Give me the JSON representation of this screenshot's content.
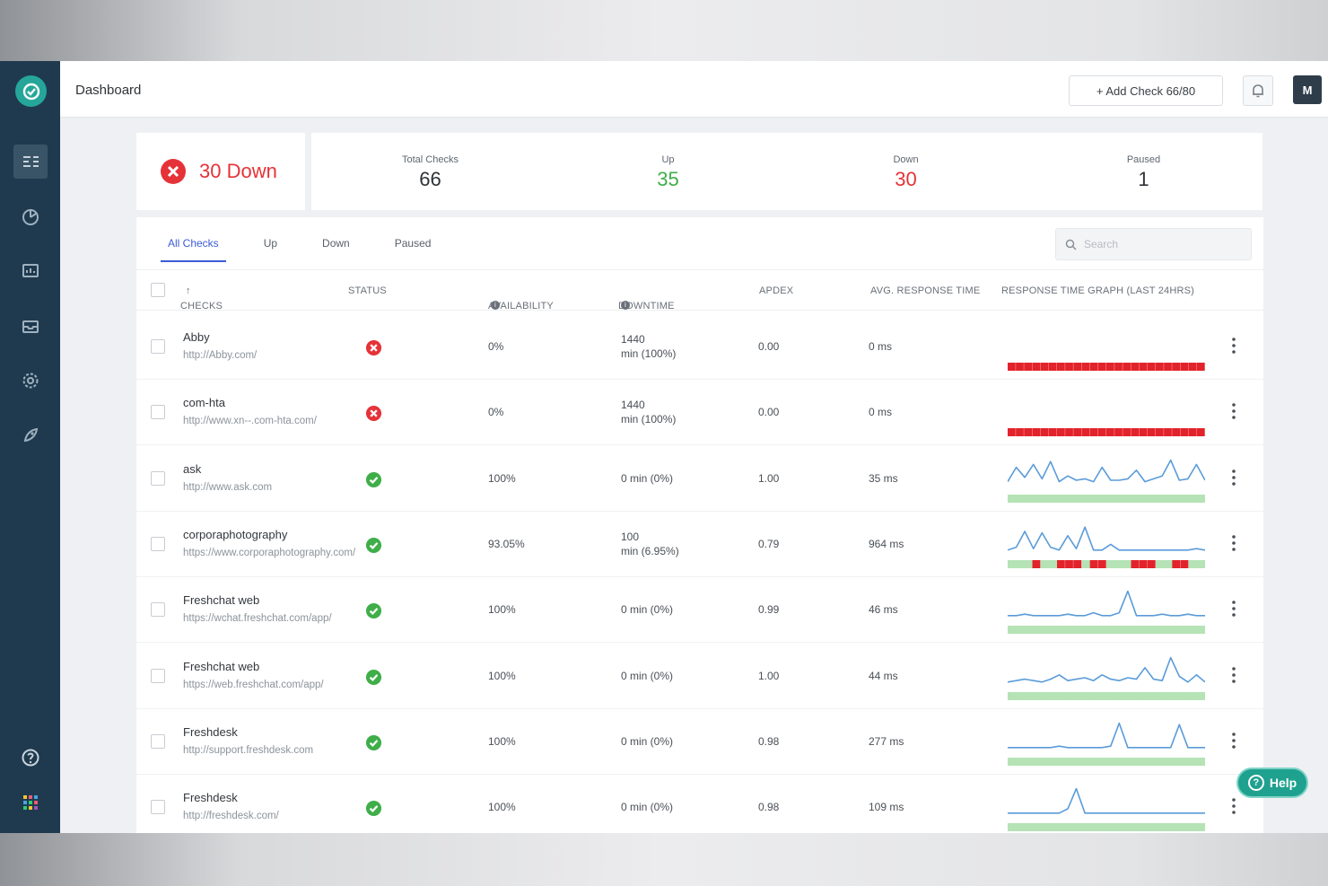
{
  "header": {
    "breadcrumb": "Dashboard",
    "add_check_label": "+ Add Check 66/80",
    "avatar_initial": "M"
  },
  "summary": {
    "down_banner": "30 Down",
    "stats": [
      {
        "label": "Total Checks",
        "value": "66"
      },
      {
        "label": "Up",
        "value": "35"
      },
      {
        "label": "Down",
        "value": "30"
      },
      {
        "label": "Paused",
        "value": "1"
      }
    ]
  },
  "tabs": [
    "All Checks",
    "Up",
    "Down",
    "Paused"
  ],
  "search": {
    "placeholder": "Search"
  },
  "columns": {
    "checks": "CHECKS",
    "status": "STATUS",
    "availability": "AVAILABILITY",
    "downtime": "DOWNTIME",
    "apdex": "APDEX",
    "avg_response": "AVG. RESPONSE TIME",
    "graph": "RESPONSE TIME GRAPH (LAST 24HRS)"
  },
  "rows": [
    {
      "name": "Abby",
      "url": "http://Abby.com/",
      "status": "down",
      "availability": "0%",
      "downtime_line1": "1440",
      "downtime_line2": "min (100%)",
      "apdex": "0.00",
      "avg_response": "0 ms",
      "graph": "flat-down"
    },
    {
      "name": "com-hta",
      "url": "http://www.xn--.com-hta.com/",
      "status": "down",
      "availability": "0%",
      "downtime_line1": "1440",
      "downtime_line2": "min (100%)",
      "apdex": "0.00",
      "avg_response": "0 ms",
      "graph": "flat-down"
    },
    {
      "name": "ask",
      "url": "http://www.ask.com",
      "status": "up",
      "availability": "100%",
      "downtime_line1": "0 min (0%)",
      "downtime_line2": "",
      "apdex": "1.00",
      "avg_response": "35 ms",
      "graph": "wavy"
    },
    {
      "name": "corporaphotography",
      "url": "https://www.corporaphotography.com/",
      "status": "up",
      "availability": "93.05%",
      "downtime_line1": "100",
      "downtime_line2": "min (6.95%)",
      "apdex": "0.79",
      "avg_response": "964 ms",
      "graph": "mixed"
    },
    {
      "name": "Freshchat web",
      "url": "https://wchat.freshchat.com/app/",
      "status": "up",
      "availability": "100%",
      "downtime_line1": "0 min (0%)",
      "downtime_line2": "",
      "apdex": "0.99",
      "avg_response": "46 ms",
      "graph": "spike-mid"
    },
    {
      "name": "Freshchat web",
      "url": "https://web.freshchat.com/app/",
      "status": "up",
      "availability": "100%",
      "downtime_line1": "0 min (0%)",
      "downtime_line2": "",
      "apdex": "1.00",
      "avg_response": "44 ms",
      "graph": "spike-late"
    },
    {
      "name": "Freshdesk",
      "url": "http://support.freshdesk.com",
      "status": "up",
      "availability": "100%",
      "downtime_line1": "0 min (0%)",
      "downtime_line2": "",
      "apdex": "0.98",
      "avg_response": "277 ms",
      "graph": "two-spikes"
    },
    {
      "name": "Freshdesk",
      "url": "http://freshdesk.com/",
      "status": "up",
      "availability": "100%",
      "downtime_line1": "0 min (0%)",
      "downtime_line2": "",
      "apdex": "0.98",
      "avg_response": "109 ms",
      "graph": "spike-early"
    }
  ],
  "help_label": "Help",
  "colors": {
    "up": "#3fae49",
    "down": "#e53238",
    "accent": "#3b5bd6",
    "sidebar": "#1f3a4f",
    "spark": "#5b9bd9",
    "bar_up": "#b5e3b5",
    "bar_down": "#e2232b"
  }
}
